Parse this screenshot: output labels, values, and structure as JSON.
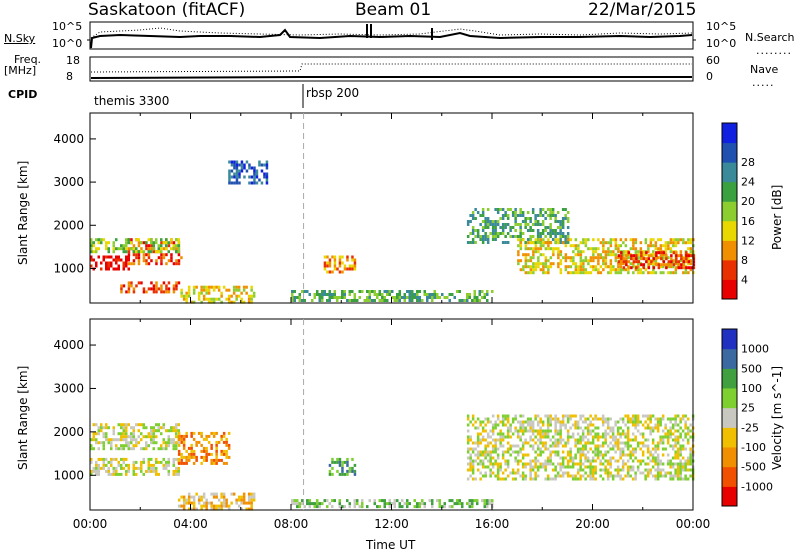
{
  "header": {
    "station": "Saskatoon (fitACF)",
    "beam": "Beam 01",
    "date": "22/Mar/2015"
  },
  "top_panels": {
    "nsky_label": "N.Sky",
    "nsearch_label": "N.Search",
    "nsky_ticks": [
      "10^5",
      "10^0"
    ],
    "nsearch_ticks": [
      "10^5",
      "10^0"
    ],
    "freq_label": "Freq.",
    "freq_unit": "[MHz]",
    "freq_ticks": [
      "18",
      "8"
    ],
    "nave_label": "Nave",
    "nave_ticks": [
      "60",
      "0"
    ],
    "cpid_label": "CPID",
    "cpid_segments": [
      {
        "name": "themis 3300",
        "start_hour": 0.0
      },
      {
        "name": "rbsp 200",
        "start_hour": 8.5
      }
    ]
  },
  "chart_data": [
    {
      "type": "heatmap",
      "name": "power",
      "ylabel": "Slant Range [km]",
      "xlabel": "",
      "xlim": [
        0,
        24
      ],
      "ylim": [
        200,
        4600
      ],
      "yticks": [
        1000,
        2000,
        3000,
        4000
      ],
      "colorbar_label": "Power [dB]",
      "colorbar_ticks": [
        "4",
        "8",
        "12",
        "16",
        "20",
        "24",
        "28"
      ],
      "colorbar_colors": [
        "#1020e0",
        "#2050b0",
        "#3a8a9a",
        "#3aa040",
        "#8ccd30",
        "#e8d800",
        "#f09000",
        "#e83000",
        "#e80000"
      ],
      "bands": [
        {
          "t0": 0.0,
          "t1": 1.5,
          "r0": 1000,
          "r1": 1300,
          "level": 8
        },
        {
          "t0": 1.5,
          "t1": 3.6,
          "r0": 1100,
          "r1": 1700,
          "level": 7
        },
        {
          "t0": 0.0,
          "t1": 3.5,
          "r0": 1400,
          "r1": 1700,
          "level": 4
        },
        {
          "t0": 1.2,
          "t1": 3.5,
          "r0": 450,
          "r1": 700,
          "level": 7
        },
        {
          "t0": 3.6,
          "t1": 6.5,
          "r0": 250,
          "r1": 600,
          "level": 5
        },
        {
          "t0": 5.5,
          "t1": 7.0,
          "r0": 3000,
          "r1": 3500,
          "level": 1
        },
        {
          "t0": 15.0,
          "t1": 19.0,
          "r0": 1600,
          "r1": 2400,
          "level": 3
        },
        {
          "t0": 17.0,
          "t1": 24.0,
          "r0": 900,
          "r1": 1700,
          "level": 5
        },
        {
          "t0": 21.0,
          "t1": 24.0,
          "r0": 1000,
          "r1": 1400,
          "level": 7
        },
        {
          "t0": 9.3,
          "t1": 10.5,
          "r0": 900,
          "r1": 1300,
          "level": 6
        },
        {
          "t0": 8.0,
          "t1": 16.0,
          "r0": 250,
          "r1": 500,
          "level": 3
        }
      ]
    },
    {
      "type": "heatmap",
      "name": "velocity",
      "ylabel": "Slant Range [km]",
      "xlabel": "Time UT",
      "xlim": [
        0,
        24
      ],
      "ylim": [
        200,
        4600
      ],
      "xticks": [
        "00:00",
        "04:00",
        "08:00",
        "12:00",
        "16:00",
        "20:00",
        "00:00"
      ],
      "yticks": [
        1000,
        2000,
        3000,
        4000
      ],
      "colorbar_label": "Velocity [m s^-1]",
      "colorbar_ticks": [
        "1000",
        "500",
        "100",
        "25",
        "-25",
        "-100",
        "-500",
        "-1000"
      ],
      "colorbar_colors": [
        "#2030c0",
        "#3a6aa0",
        "#40a040",
        "#7ed030",
        "#c8c8c0",
        "#f0c000",
        "#f09000",
        "#f05000",
        "#e80000"
      ],
      "bands": [
        {
          "t0": 0.0,
          "t1": 3.5,
          "r0": 1000,
          "r1": 1400,
          "level": 4
        },
        {
          "t0": 0.0,
          "t1": 3.5,
          "r0": 1600,
          "r1": 2200,
          "level": 4
        },
        {
          "t0": 15.0,
          "t1": 24.0,
          "r0": 900,
          "r1": 2400,
          "level": 4
        },
        {
          "t0": 3.5,
          "t1": 6.5,
          "r0": 250,
          "r1": 600,
          "level": 5
        },
        {
          "t0": 9.5,
          "t1": 10.5,
          "r0": 1000,
          "r1": 1400,
          "level": 2
        },
        {
          "t0": 3.5,
          "t1": 5.5,
          "r0": 1300,
          "r1": 2000,
          "level": 6
        },
        {
          "t0": 8.0,
          "t1": 16.0,
          "r0": 250,
          "r1": 450,
          "level": 3
        }
      ]
    }
  ]
}
